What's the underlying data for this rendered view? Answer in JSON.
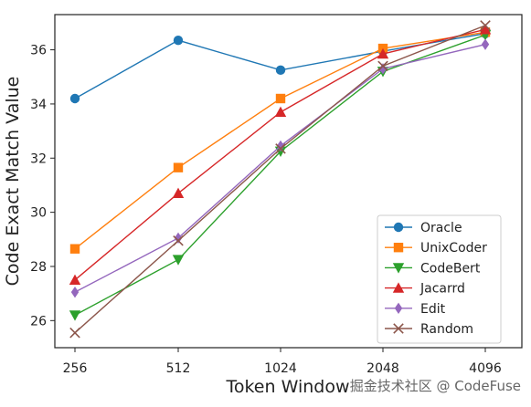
{
  "chart_data": {
    "type": "line",
    "x": [
      "256",
      "512",
      "1024",
      "2048",
      "4096"
    ],
    "xlabel": "Token Window",
    "ylabel": "Code Exact Match Value",
    "ylim": [
      25,
      37.3
    ],
    "yticks": [
      26,
      28,
      30,
      32,
      34,
      36
    ],
    "grid": false,
    "legend_position": "lower-right",
    "series": [
      {
        "name": "Oracle",
        "color": "#1f77b4",
        "marker": "circle",
        "values": [
          34.2,
          36.35,
          35.25,
          35.95,
          36.6
        ]
      },
      {
        "name": "UnixCoder",
        "color": "#ff7f0e",
        "marker": "square",
        "values": [
          28.65,
          31.65,
          34.2,
          36.05,
          36.65
        ]
      },
      {
        "name": "CodeBert",
        "color": "#2ca02c",
        "marker": "triangle-down",
        "values": [
          26.2,
          28.25,
          32.25,
          35.2,
          36.55
        ]
      },
      {
        "name": "Jacarrd",
        "color": "#d62728",
        "marker": "triangle-up",
        "values": [
          27.5,
          30.7,
          33.7,
          35.85,
          36.75
        ]
      },
      {
        "name": "Edit",
        "color": "#9467bd",
        "marker": "diamond",
        "values": [
          27.05,
          29.05,
          32.45,
          35.3,
          36.2
        ]
      },
      {
        "name": "Random",
        "color": "#8c564b",
        "marker": "x",
        "values": [
          25.55,
          28.95,
          32.35,
          35.4,
          36.9
        ]
      }
    ]
  },
  "watermark": {
    "text": "掘金技术社区 @ CodeFuse"
  }
}
